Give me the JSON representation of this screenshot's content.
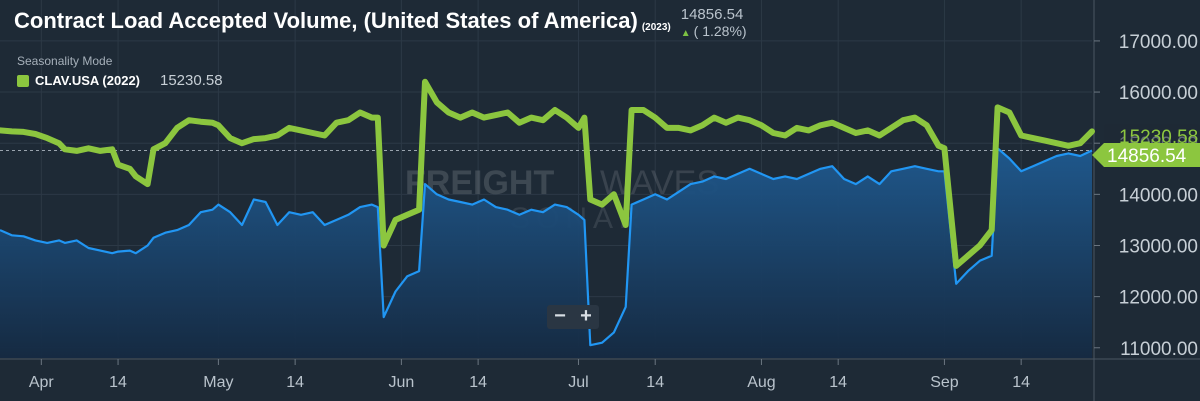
{
  "header": {
    "title": "Contract Load Accepted Volume, (United States of America)",
    "year_tag": "(2023)",
    "current_value": "14856.54",
    "change_text": "( 1.28%)",
    "change_direction": "up",
    "mode_label": "Seasonality Mode",
    "legend_label": "CLAV.USA (2022)",
    "legend_value": "15230.58"
  },
  "watermark": {
    "brand_a": "FREIGHT",
    "brand_b": "WAVES",
    "brand_c": "SONAR"
  },
  "zoom": {
    "minus": "−",
    "plus": "+"
  },
  "badges": {
    "series_2022": "15230.58",
    "series_2023": "14856.54"
  },
  "colors": {
    "background": "#1e2a36",
    "series_2023": "#2196f3",
    "series_2022": "#8cc63f",
    "fill_2023": "#1a4a7a"
  },
  "chart_data": {
    "type": "line",
    "x_axis": {
      "start": "2023-03-25",
      "end": "2023-09-26",
      "ticks": [
        {
          "date": "2023-04-01",
          "label": "Apr"
        },
        {
          "date": "2023-04-14",
          "label": "14"
        },
        {
          "date": "2023-05-01",
          "label": "May"
        },
        {
          "date": "2023-05-14",
          "label": "14"
        },
        {
          "date": "2023-06-01",
          "label": "Jun"
        },
        {
          "date": "2023-06-14",
          "label": "14"
        },
        {
          "date": "2023-07-01",
          "label": "Jul"
        },
        {
          "date": "2023-07-14",
          "label": "14"
        },
        {
          "date": "2023-08-01",
          "label": "Aug"
        },
        {
          "date": "2023-08-14",
          "label": "14"
        },
        {
          "date": "2023-09-01",
          "label": "Sep"
        },
        {
          "date": "2023-09-14",
          "label": "14"
        }
      ]
    },
    "y_axis": {
      "min": 10800,
      "max": 17800,
      "ticks": [
        11000,
        12000,
        13000,
        14000,
        15000,
        16000,
        17000
      ],
      "tick_labels": [
        "11000.00",
        "12000.00",
        "13000.00",
        "14000.00",
        "15000.00",
        "16000.00",
        "17000.00"
      ]
    },
    "reference_line": 14856.54,
    "series": [
      {
        "name": "CLAV.USA (2022)",
        "color": "#8cc63f",
        "points": [
          [
            "2023-03-25",
            15250
          ],
          [
            "2023-03-27",
            15230
          ],
          [
            "2023-03-29",
            15220
          ],
          [
            "2023-03-31",
            15180
          ],
          [
            "2023-04-02",
            15100
          ],
          [
            "2023-04-04",
            15000
          ],
          [
            "2023-04-05",
            14880
          ],
          [
            "2023-04-07",
            14850
          ],
          [
            "2023-04-09",
            14900
          ],
          [
            "2023-04-11",
            14850
          ],
          [
            "2023-04-13",
            14880
          ],
          [
            "2023-04-14",
            14580
          ],
          [
            "2023-04-16",
            14500
          ],
          [
            "2023-04-17",
            14350
          ],
          [
            "2023-04-19",
            14200
          ],
          [
            "2023-04-20",
            14880
          ],
          [
            "2023-04-22",
            15000
          ],
          [
            "2023-04-24",
            15300
          ],
          [
            "2023-04-26",
            15450
          ],
          [
            "2023-04-28",
            15420
          ],
          [
            "2023-04-30",
            15400
          ],
          [
            "2023-05-01",
            15350
          ],
          [
            "2023-05-03",
            15100
          ],
          [
            "2023-05-05",
            15000
          ],
          [
            "2023-05-07",
            15080
          ],
          [
            "2023-05-09",
            15100
          ],
          [
            "2023-05-11",
            15150
          ],
          [
            "2023-05-13",
            15300
          ],
          [
            "2023-05-15",
            15250
          ],
          [
            "2023-05-17",
            15200
          ],
          [
            "2023-05-19",
            15150
          ],
          [
            "2023-05-21",
            15400
          ],
          [
            "2023-05-23",
            15450
          ],
          [
            "2023-05-25",
            15600
          ],
          [
            "2023-05-27",
            15500
          ],
          [
            "2023-05-28",
            15500
          ],
          [
            "2023-05-29",
            13000
          ],
          [
            "2023-05-31",
            13500
          ],
          [
            "2023-06-02",
            13600
          ],
          [
            "2023-06-04",
            13700
          ],
          [
            "2023-06-05",
            16200
          ],
          [
            "2023-06-07",
            15800
          ],
          [
            "2023-06-09",
            15600
          ],
          [
            "2023-06-11",
            15500
          ],
          [
            "2023-06-13",
            15600
          ],
          [
            "2023-06-15",
            15500
          ],
          [
            "2023-06-17",
            15550
          ],
          [
            "2023-06-19",
            15600
          ],
          [
            "2023-06-21",
            15400
          ],
          [
            "2023-06-23",
            15500
          ],
          [
            "2023-06-25",
            15450
          ],
          [
            "2023-06-27",
            15650
          ],
          [
            "2023-06-29",
            15500
          ],
          [
            "2023-07-01",
            15300
          ],
          [
            "2023-07-02",
            15500
          ],
          [
            "2023-07-03",
            13900
          ],
          [
            "2023-07-05",
            13800
          ],
          [
            "2023-07-07",
            14000
          ],
          [
            "2023-07-09",
            13400
          ],
          [
            "2023-07-10",
            15650
          ],
          [
            "2023-07-12",
            15650
          ],
          [
            "2023-07-14",
            15500
          ],
          [
            "2023-07-16",
            15300
          ],
          [
            "2023-07-18",
            15300
          ],
          [
            "2023-07-20",
            15250
          ],
          [
            "2023-07-22",
            15350
          ],
          [
            "2023-07-24",
            15500
          ],
          [
            "2023-07-26",
            15400
          ],
          [
            "2023-07-28",
            15500
          ],
          [
            "2023-07-30",
            15450
          ],
          [
            "2023-08-01",
            15350
          ],
          [
            "2023-08-03",
            15200
          ],
          [
            "2023-08-05",
            15150
          ],
          [
            "2023-08-07",
            15300
          ],
          [
            "2023-08-09",
            15250
          ],
          [
            "2023-08-11",
            15350
          ],
          [
            "2023-08-13",
            15400
          ],
          [
            "2023-08-15",
            15300
          ],
          [
            "2023-08-17",
            15200
          ],
          [
            "2023-08-19",
            15250
          ],
          [
            "2023-08-21",
            15150
          ],
          [
            "2023-08-23",
            15300
          ],
          [
            "2023-08-25",
            15450
          ],
          [
            "2023-08-27",
            15500
          ],
          [
            "2023-08-29",
            15350
          ],
          [
            "2023-08-31",
            14950
          ],
          [
            "2023-09-01",
            14900
          ],
          [
            "2023-09-03",
            12600
          ],
          [
            "2023-09-05",
            12800
          ],
          [
            "2023-09-07",
            13000
          ],
          [
            "2023-09-09",
            13300
          ],
          [
            "2023-09-10",
            15700
          ],
          [
            "2023-09-12",
            15600
          ],
          [
            "2023-09-14",
            15150
          ],
          [
            "2023-09-16",
            15100
          ],
          [
            "2023-09-18",
            15050
          ],
          [
            "2023-09-20",
            15000
          ],
          [
            "2023-09-22",
            14950
          ],
          [
            "2023-09-24",
            15000
          ],
          [
            "2023-09-26",
            15230
          ]
        ]
      },
      {
        "name": "CLAV.USA (2023)",
        "color": "#2196f3",
        "points": [
          [
            "2023-03-25",
            13300
          ],
          [
            "2023-03-27",
            13200
          ],
          [
            "2023-03-29",
            13180
          ],
          [
            "2023-03-31",
            13100
          ],
          [
            "2023-04-02",
            13050
          ],
          [
            "2023-04-04",
            13100
          ],
          [
            "2023-04-05",
            13050
          ],
          [
            "2023-04-07",
            13100
          ],
          [
            "2023-04-09",
            12950
          ],
          [
            "2023-04-11",
            12900
          ],
          [
            "2023-04-13",
            12850
          ],
          [
            "2023-04-14",
            12880
          ],
          [
            "2023-04-16",
            12900
          ],
          [
            "2023-04-17",
            12850
          ],
          [
            "2023-04-19",
            13000
          ],
          [
            "2023-04-20",
            13150
          ],
          [
            "2023-04-22",
            13250
          ],
          [
            "2023-04-24",
            13300
          ],
          [
            "2023-04-26",
            13400
          ],
          [
            "2023-04-28",
            13650
          ],
          [
            "2023-04-30",
            13700
          ],
          [
            "2023-05-01",
            13800
          ],
          [
            "2023-05-03",
            13650
          ],
          [
            "2023-05-05",
            13400
          ],
          [
            "2023-05-07",
            13900
          ],
          [
            "2023-05-09",
            13850
          ],
          [
            "2023-05-11",
            13400
          ],
          [
            "2023-05-13",
            13650
          ],
          [
            "2023-05-15",
            13600
          ],
          [
            "2023-05-17",
            13650
          ],
          [
            "2023-05-19",
            13400
          ],
          [
            "2023-05-21",
            13500
          ],
          [
            "2023-05-23",
            13600
          ],
          [
            "2023-05-25",
            13750
          ],
          [
            "2023-05-27",
            13800
          ],
          [
            "2023-05-28",
            13750
          ],
          [
            "2023-05-29",
            11600
          ],
          [
            "2023-05-31",
            12100
          ],
          [
            "2023-06-02",
            12400
          ],
          [
            "2023-06-04",
            12500
          ],
          [
            "2023-06-05",
            14200
          ],
          [
            "2023-06-07",
            14000
          ],
          [
            "2023-06-09",
            13900
          ],
          [
            "2023-06-11",
            13850
          ],
          [
            "2023-06-13",
            13800
          ],
          [
            "2023-06-15",
            13900
          ],
          [
            "2023-06-17",
            13750
          ],
          [
            "2023-06-19",
            13700
          ],
          [
            "2023-06-21",
            13600
          ],
          [
            "2023-06-23",
            13700
          ],
          [
            "2023-06-25",
            13650
          ],
          [
            "2023-06-27",
            13800
          ],
          [
            "2023-06-29",
            13750
          ],
          [
            "2023-07-01",
            13600
          ],
          [
            "2023-07-02",
            13500
          ],
          [
            "2023-07-03",
            11050
          ],
          [
            "2023-07-05",
            11100
          ],
          [
            "2023-07-07",
            11300
          ],
          [
            "2023-07-09",
            11800
          ],
          [
            "2023-07-10",
            13800
          ],
          [
            "2023-07-12",
            13900
          ],
          [
            "2023-07-14",
            14000
          ],
          [
            "2023-07-16",
            13900
          ],
          [
            "2023-07-18",
            14050
          ],
          [
            "2023-07-20",
            14200
          ],
          [
            "2023-07-22",
            14250
          ],
          [
            "2023-07-24",
            14350
          ],
          [
            "2023-07-26",
            14300
          ],
          [
            "2023-07-28",
            14400
          ],
          [
            "2023-07-30",
            14500
          ],
          [
            "2023-08-01",
            14400
          ],
          [
            "2023-08-03",
            14300
          ],
          [
            "2023-08-05",
            14350
          ],
          [
            "2023-08-07",
            14300
          ],
          [
            "2023-08-09",
            14400
          ],
          [
            "2023-08-11",
            14500
          ],
          [
            "2023-08-13",
            14550
          ],
          [
            "2023-08-15",
            14300
          ],
          [
            "2023-08-17",
            14200
          ],
          [
            "2023-08-19",
            14350
          ],
          [
            "2023-08-21",
            14200
          ],
          [
            "2023-08-23",
            14450
          ],
          [
            "2023-08-25",
            14500
          ],
          [
            "2023-08-27",
            14550
          ],
          [
            "2023-08-29",
            14500
          ],
          [
            "2023-08-31",
            14450
          ],
          [
            "2023-09-01",
            14450
          ],
          [
            "2023-09-03",
            12250
          ],
          [
            "2023-09-05",
            12500
          ],
          [
            "2023-09-07",
            12700
          ],
          [
            "2023-09-09",
            12800
          ],
          [
            "2023-09-10",
            14900
          ],
          [
            "2023-09-12",
            14700
          ],
          [
            "2023-09-14",
            14450
          ],
          [
            "2023-09-16",
            14550
          ],
          [
            "2023-09-18",
            14650
          ],
          [
            "2023-09-20",
            14750
          ],
          [
            "2023-09-22",
            14800
          ],
          [
            "2023-09-24",
            14750
          ],
          [
            "2023-09-26",
            14856.54
          ]
        ]
      }
    ]
  }
}
